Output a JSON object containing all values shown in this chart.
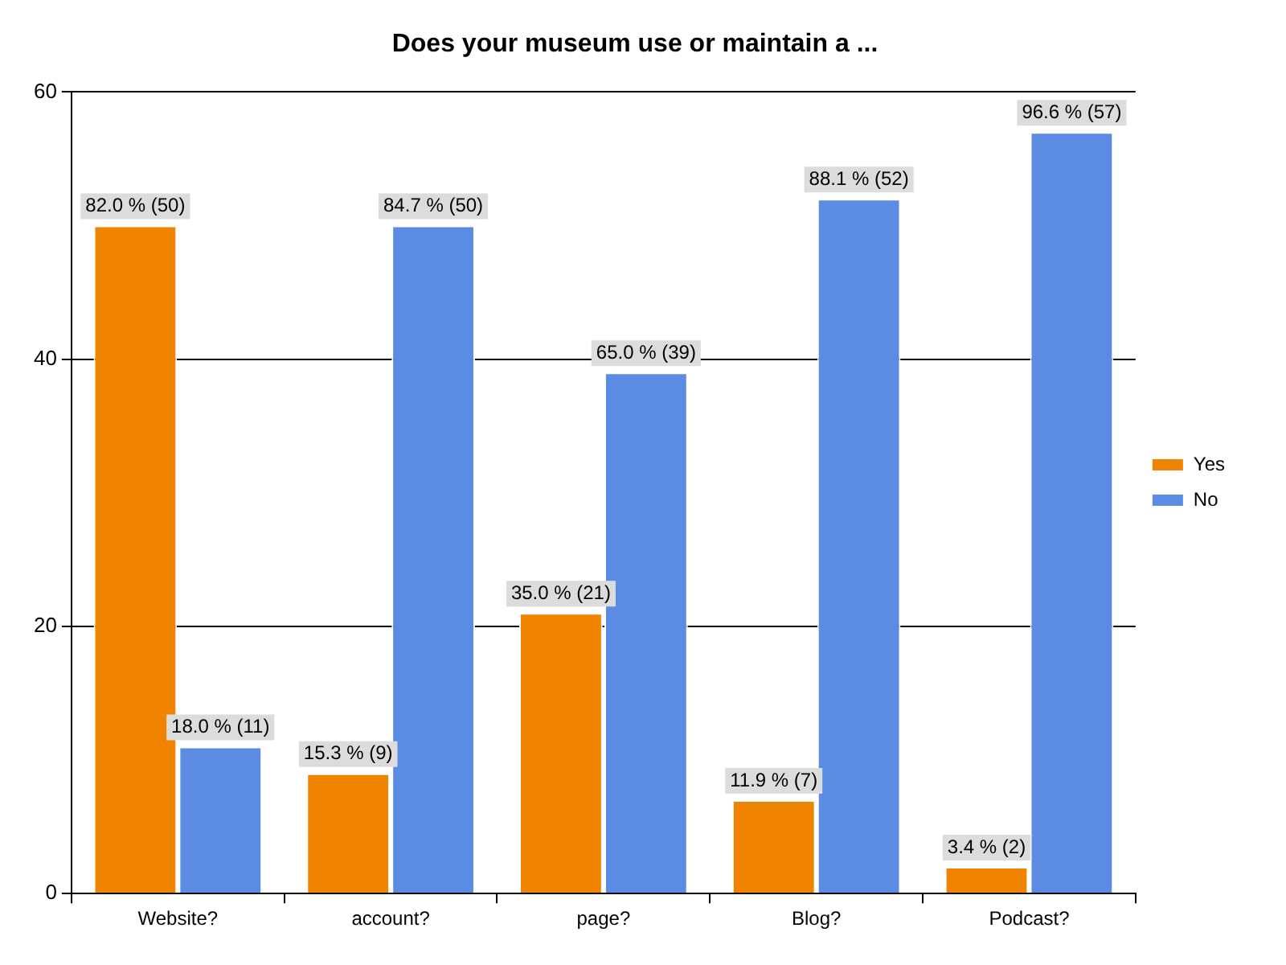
{
  "chart_data": {
    "type": "bar",
    "title": "Does your museum use or maintain a ...",
    "categories": [
      "Website?",
      "account?",
      "page?",
      "Blog?",
      "Podcast?"
    ],
    "series": [
      {
        "name": "Yes",
        "color": "#f08300",
        "values": [
          50,
          9,
          21,
          7,
          2
        ],
        "value_labels": [
          "82.0 % (50)",
          "15.3 % (9)",
          "35.0 % (21)",
          "11.9 % (7)",
          "3.4 % (2)"
        ]
      },
      {
        "name": "No",
        "color": "#5b8be3",
        "values": [
          11,
          50,
          39,
          52,
          57
        ],
        "value_labels": [
          "18.0 % (11)",
          "84.7 % (50)",
          "65.0 % (39)",
          "88.1 % (52)",
          "96.6 % (57)"
        ]
      }
    ],
    "ylim": [
      0,
      60
    ],
    "yticks": [
      0,
      20,
      40,
      60
    ],
    "grid": "y",
    "legend": "right"
  }
}
